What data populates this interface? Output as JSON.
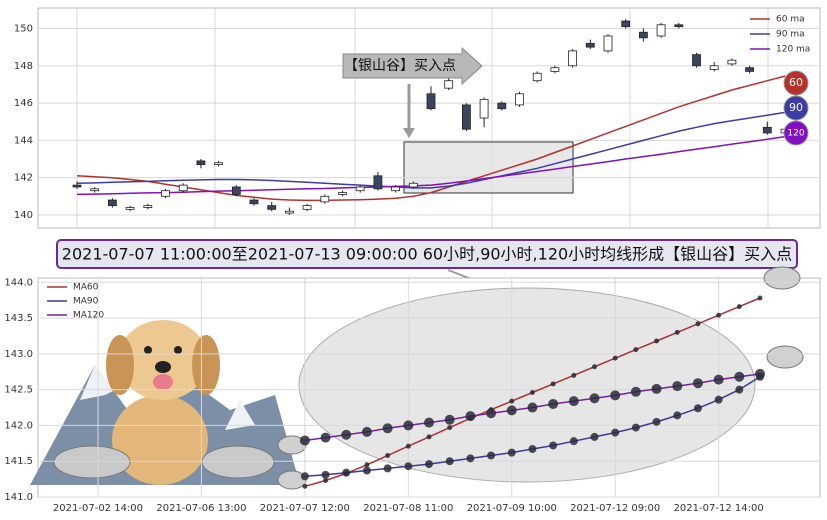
{
  "chart_data": [
    {
      "type": "candlestick",
      "open": [
        141.6,
        141.3,
        140.8,
        140.3,
        140.4,
        141.0,
        141.3,
        142.9,
        142.7,
        141.5,
        140.8,
        140.5,
        140.1,
        140.3,
        140.7,
        141.1,
        141.3,
        142.1,
        141.3,
        141.5,
        146.5,
        146.8,
        145.9,
        145.2,
        146.0,
        145.9,
        147.2,
        147.7,
        148.0,
        149.2,
        148.8,
        150.4,
        149.8,
        149.6,
        150.2,
        148.6,
        147.8,
        148.1,
        147.9,
        144.7,
        144.4
      ],
      "high": [
        141.8,
        141.5,
        140.9,
        140.5,
        140.6,
        141.4,
        141.7,
        143.0,
        142.9,
        141.6,
        140.9,
        140.7,
        140.4,
        140.6,
        141.1,
        141.3,
        141.6,
        142.3,
        141.6,
        141.8,
        146.9,
        147.4,
        146.0,
        146.3,
        146.1,
        146.6,
        147.7,
        148.0,
        148.9,
        149.4,
        149.7,
        150.5,
        150.0,
        150.3,
        150.3,
        148.7,
        148.2,
        148.4,
        148.0,
        145.0,
        144.7
      ],
      "low": [
        141.4,
        141.2,
        140.4,
        140.2,
        140.3,
        140.9,
        141.2,
        142.5,
        142.6,
        141.0,
        140.5,
        140.2,
        140.0,
        140.2,
        140.6,
        141.0,
        141.2,
        141.3,
        141.2,
        141.4,
        145.6,
        146.7,
        144.5,
        144.7,
        145.6,
        145.8,
        147.1,
        147.6,
        147.9,
        148.9,
        148.7,
        150.0,
        149.3,
        149.5,
        150.0,
        147.9,
        147.7,
        148.0,
        147.6,
        144.3,
        144.3
      ],
      "close": [
        141.5,
        141.4,
        140.5,
        140.4,
        140.5,
        141.3,
        141.6,
        142.7,
        142.8,
        141.1,
        140.6,
        140.3,
        140.2,
        140.5,
        141.0,
        141.2,
        141.5,
        141.4,
        141.5,
        141.7,
        145.7,
        147.2,
        144.6,
        146.2,
        145.7,
        146.5,
        147.6,
        147.9,
        148.8,
        149.0,
        149.6,
        150.1,
        149.5,
        150.2,
        150.1,
        148.0,
        148.0,
        148.3,
        147.7,
        144.4,
        144.6
      ],
      "series": [
        {
          "name": "60 ma",
          "color": "#b5312a",
          "values": [
            142.1,
            142.05,
            142.0,
            141.9,
            141.8,
            141.65,
            141.5,
            141.35,
            141.2,
            141.05,
            140.95,
            140.85,
            140.8,
            140.78,
            140.78,
            140.8,
            140.82,
            140.85,
            140.9,
            141.0,
            141.2,
            141.5,
            141.8,
            142.1,
            142.4,
            142.7,
            143.0,
            143.35,
            143.7,
            144.05,
            144.4,
            144.75,
            145.1,
            145.45,
            145.8,
            146.1,
            146.4,
            146.7,
            146.95,
            147.2,
            147.45
          ]
        },
        {
          "name": "90 ma",
          "color": "#3c3ca6",
          "values": [
            141.7,
            141.72,
            141.75,
            141.78,
            141.8,
            141.83,
            141.86,
            141.88,
            141.9,
            141.9,
            141.88,
            141.85,
            141.8,
            141.75,
            141.7,
            141.65,
            141.6,
            141.55,
            141.5,
            141.45,
            141.45,
            141.55,
            141.7,
            141.9,
            142.1,
            142.3,
            142.5,
            142.75,
            143.0,
            143.25,
            143.5,
            143.75,
            144.0,
            144.25,
            144.5,
            144.7,
            144.9,
            145.05,
            145.2,
            145.35,
            145.5
          ]
        },
        {
          "name": "120 ma",
          "color": "#8010c0",
          "values": [
            141.1,
            141.12,
            141.14,
            141.16,
            141.18,
            141.2,
            141.22,
            141.25,
            141.28,
            141.3,
            141.32,
            141.35,
            141.38,
            141.4,
            141.42,
            141.45,
            141.48,
            141.5,
            141.53,
            141.56,
            141.6,
            141.7,
            141.82,
            141.95,
            142.08,
            142.2,
            142.33,
            142.46,
            142.6,
            142.73,
            142.86,
            143.0,
            143.13,
            143.26,
            143.4,
            143.53,
            143.66,
            143.8,
            143.93,
            144.06,
            144.2
          ]
        }
      ],
      "ylim": [
        139.3,
        151.1
      ],
      "yticks": [
        140,
        142,
        144,
        146,
        148,
        150
      ],
      "grid": true,
      "legend": "upper right",
      "annotation": "【银山谷】买入点",
      "end_labels": [
        "60",
        "90",
        "120"
      ]
    },
    {
      "type": "line",
      "x": [
        0,
        1,
        2,
        3,
        4,
        5,
        6,
        7,
        8,
        9,
        10,
        11,
        12,
        13,
        14,
        15,
        16,
        17,
        18,
        19,
        20,
        21,
        22
      ],
      "series": [
        {
          "name": "MA60",
          "color": "#b03030",
          "values": [
            141.15,
            141.23,
            141.33,
            141.45,
            141.58,
            141.71,
            141.84,
            141.97,
            142.1,
            142.22,
            142.34,
            142.46,
            142.58,
            142.7,
            142.82,
            142.94,
            143.06,
            143.18,
            143.3,
            143.42,
            143.54,
            143.66,
            143.78
          ]
        },
        {
          "name": "MA90",
          "color": "#3a3a9a",
          "values": [
            141.29,
            141.31,
            141.34,
            141.37,
            141.4,
            141.43,
            141.46,
            141.5,
            141.54,
            141.58,
            141.62,
            141.67,
            141.72,
            141.78,
            141.84,
            141.9,
            141.97,
            142.05,
            142.14,
            142.24,
            142.36,
            142.5,
            142.68
          ]
        },
        {
          "name": "MA120",
          "color": "#7b1fa2",
          "values": [
            141.79,
            141.83,
            141.87,
            141.91,
            141.96,
            142.0,
            142.04,
            142.08,
            142.13,
            142.17,
            142.21,
            142.25,
            142.3,
            142.34,
            142.38,
            142.42,
            142.47,
            142.51,
            142.55,
            142.59,
            142.64,
            142.68,
            142.72
          ]
        }
      ],
      "xlim": [
        -12.9,
        24.9
      ],
      "xticks": [
        {
          "value": -10,
          "label": "2021-07-02 14:00"
        },
        {
          "value": -5,
          "label": "2021-07-06 13:00"
        },
        {
          "value": 0,
          "label": "2021-07-07 12:00"
        },
        {
          "value": 5,
          "label": "2021-07-08 11:00"
        },
        {
          "value": 10,
          "label": "2021-07-09 10:00"
        },
        {
          "value": 15,
          "label": "2021-07-12 09:00"
        },
        {
          "value": 20,
          "label": "2021-07-12 14:00"
        }
      ],
      "ylim": [
        141.0,
        144.06
      ],
      "yticks": [
        {
          "value": 141.0,
          "label": "141.0"
        },
        141.5,
        {
          "value": 142.0,
          "label": "142.0"
        },
        142.5,
        {
          "value": 143.0,
          "label": "143.0"
        },
        143.5,
        {
          "value": 144.0,
          "label": "144.0"
        }
      ],
      "grid": true,
      "legend": "upper left"
    }
  ],
  "banner": "2021-07-07 11:00:00至2021-07-13 09:00:00 60小时,90小时,120小时均线形成【银山谷】买入点"
}
